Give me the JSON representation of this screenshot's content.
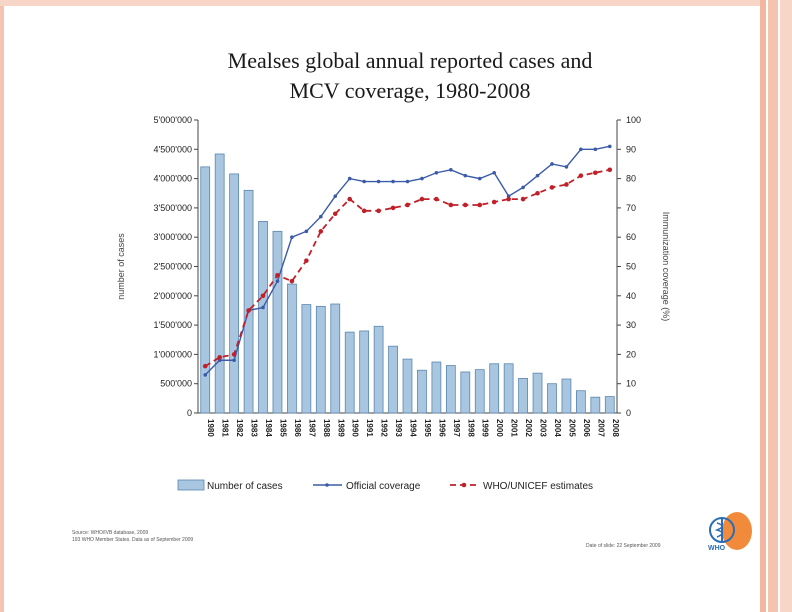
{
  "title": {
    "line1": "Mealses global annual reported cases and",
    "line2": "MCV coverage, 1980-2008"
  },
  "chart_data": {
    "type": "bar",
    "title": "Mealses global annual reported cases and MCV coverage, 1980-2008",
    "categories": [
      "1980",
      "1981",
      "1982",
      "1983",
      "1984",
      "1985",
      "1986",
      "1987",
      "1988",
      "1989",
      "1990",
      "1991",
      "1992",
      "1993",
      "1994",
      "1995",
      "1996",
      "1997",
      "1998",
      "1999",
      "2000",
      "2001",
      "2002",
      "2003",
      "2004",
      "2005",
      "2006",
      "2007",
      "2008"
    ],
    "ylabel": "number of cases",
    "y2label": "Immunization coverage (%)",
    "ylim": [
      0,
      5000000
    ],
    "y2lim": [
      0,
      100
    ],
    "yticks": [
      "5'000'000",
      "4'500'000",
      "4'000'000",
      "3'500'000",
      "3'000'000",
      "2'500'000",
      "2'000'000",
      "1'500'000",
      "1'000'000",
      "500'000",
      "0"
    ],
    "y2ticks": [
      "100",
      "90",
      "80",
      "70",
      "60",
      "50",
      "40",
      "30",
      "20",
      "10",
      "0"
    ],
    "series": [
      {
        "name": "Number of cases",
        "kind": "bar",
        "axis": "left",
        "values": [
          4200000,
          4420000,
          4080000,
          3800000,
          3270000,
          3100000,
          2200000,
          1850000,
          1820000,
          1860000,
          1380000,
          1400000,
          1480000,
          1140000,
          920000,
          730000,
          870000,
          810000,
          700000,
          740000,
          840000,
          840000,
          590000,
          680000,
          500000,
          580000,
          380000,
          270000,
          280000
        ]
      },
      {
        "name": "Official coverage",
        "kind": "line",
        "axis": "right",
        "values": [
          13,
          18,
          18,
          35,
          36,
          45,
          60,
          62,
          67,
          74,
          80,
          79,
          79,
          79,
          79,
          80,
          82,
          83,
          81,
          80,
          82,
          74,
          77,
          81,
          85,
          84,
          90,
          90,
          91
        ]
      },
      {
        "name": "WHO/UNICEF estimates",
        "kind": "line-dashed",
        "axis": "right",
        "values": [
          16,
          19,
          20,
          35,
          40,
          47,
          45,
          52,
          62,
          68,
          73,
          69,
          69,
          70,
          71,
          73,
          73,
          71,
          71,
          71,
          72,
          73,
          73,
          75,
          77,
          78,
          81,
          82,
          83
        ]
      }
    ],
    "legend": [
      "Number of cases",
      "Official coverage",
      "WHO/UNICEF estimates"
    ],
    "colors": {
      "bar_fill": "#a9c6e0",
      "bar_edge": "#5a86ad",
      "official": "#3b5aa8",
      "who": "#c0202a"
    }
  },
  "footer": {
    "source_line1": "Source: WHO/IVB database, 2009",
    "source_line2": "193 WHO Member States. Data as of September 2009",
    "date_note": "Date of slide: 22 September 2009",
    "logo_text": "WHO"
  }
}
